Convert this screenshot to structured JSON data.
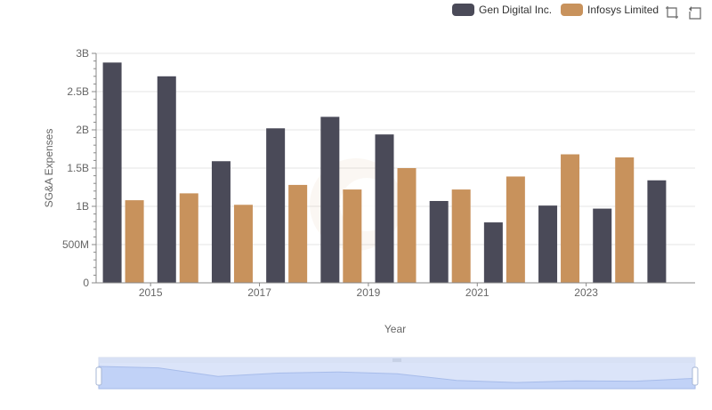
{
  "legend": {
    "items": [
      {
        "label": "Gen Digital Inc.",
        "color": "#4a4a58"
      },
      {
        "label": "Infosys Limited",
        "color": "#c8925c"
      }
    ]
  },
  "toolbox": {
    "icons": [
      "zoom-icon",
      "restore-icon"
    ]
  },
  "chart_data": {
    "type": "bar",
    "xlabel": "Year",
    "ylabel": "SG&A Expenses",
    "ylim": [
      0,
      3000000000
    ],
    "yticks": [
      {
        "value": 0,
        "label": "0"
      },
      {
        "value": 500000000,
        "label": "500M"
      },
      {
        "value": 1000000000,
        "label": "1B"
      },
      {
        "value": 1500000000,
        "label": "1.5B"
      },
      {
        "value": 2000000000,
        "label": "2B"
      },
      {
        "value": 2500000000,
        "label": "2.5B"
      },
      {
        "value": 3000000000,
        "label": "3B"
      }
    ],
    "categories": [
      "2014",
      "2015",
      "2016",
      "2017",
      "2018",
      "2019",
      "2020",
      "2021",
      "2022",
      "2023",
      "2024"
    ],
    "xtick_labels": [
      "",
      "2015",
      "",
      "2017",
      "",
      "2019",
      "",
      "2021",
      "",
      "2023",
      ""
    ],
    "grid": true,
    "legend_position": "top-right",
    "series": [
      {
        "name": "Gen Digital Inc.",
        "color": "#4a4a58",
        "values": [
          2880000000,
          2700000000,
          1590000000,
          2020000000,
          2170000000,
          1940000000,
          1070000000,
          790000000,
          1010000000,
          970000000,
          1340000000
        ]
      },
      {
        "name": "Infosys Limited",
        "color": "#c8925c",
        "values": [
          1080000000,
          1170000000,
          1020000000,
          1280000000,
          1220000000,
          1500000000,
          1220000000,
          1390000000,
          1680000000,
          1640000000,
          null
        ]
      }
    ]
  }
}
